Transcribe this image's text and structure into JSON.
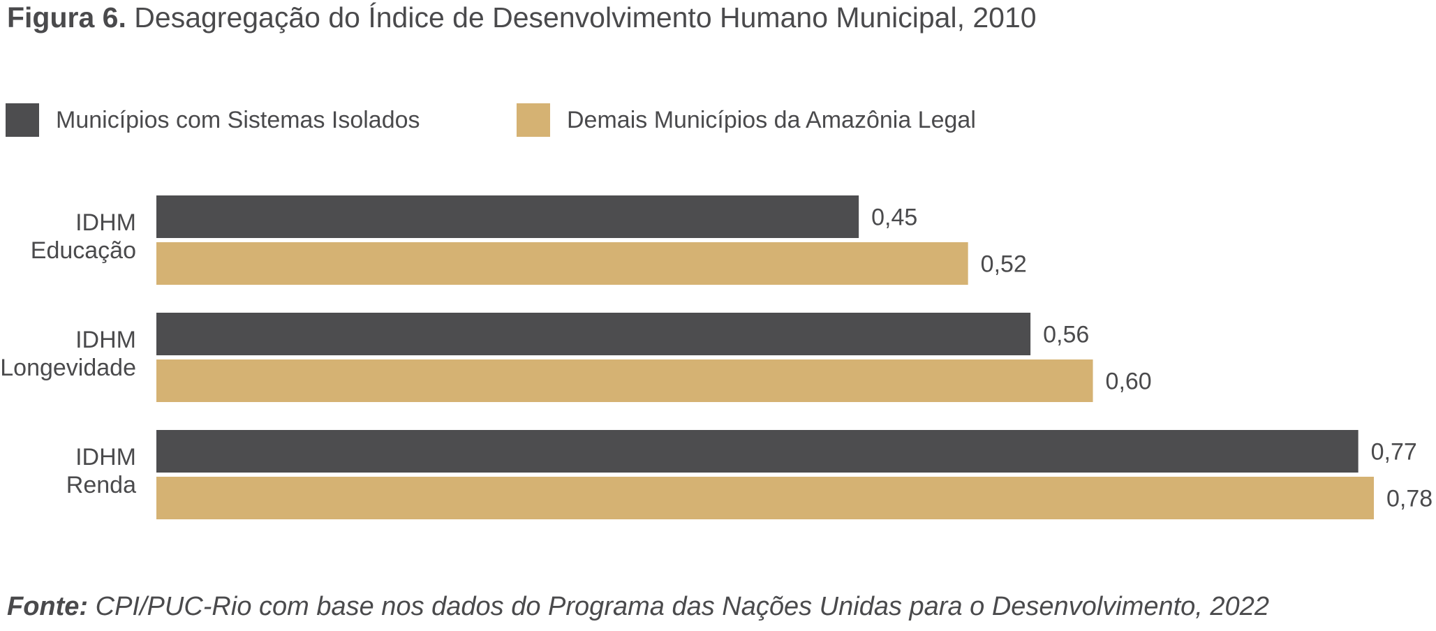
{
  "title": {
    "label": "Figura 6.",
    "text": "Desagregação do Índice de Desenvolvimento Humano Municipal, 2010"
  },
  "source": {
    "label": "Fonte:",
    "text": "CPI/PUC-Rio com base nos dados do Programa das Nações Unidas para o Desenvolvimento, 2022"
  },
  "chart_data": {
    "type": "bar",
    "orientation": "horizontal",
    "title": "Desagregação do Índice de Desenvolvimento Humano Municipal, 2010",
    "categories": [
      [
        "IDHM",
        "Educação"
      ],
      [
        "IDHM",
        "Longevidade"
      ],
      [
        "IDHM",
        "Renda"
      ]
    ],
    "series": [
      {
        "name": "Municípios com Sistemas Isolados",
        "color": "#4d4d4f",
        "values": [
          0.45,
          0.56,
          0.77
        ],
        "labels": [
          "0,45",
          "0,56",
          "0,77"
        ]
      },
      {
        "name": "Demais Municípios da Amazônia Legal",
        "color": "#d5b273",
        "values": [
          0.52,
          0.6,
          0.78
        ],
        "labels": [
          "0,52",
          "0,60",
          "0,78"
        ]
      }
    ],
    "xlim": [
      0,
      0.78
    ],
    "grid": false,
    "legend": "top-left",
    "xlabel": "",
    "ylabel": ""
  }
}
